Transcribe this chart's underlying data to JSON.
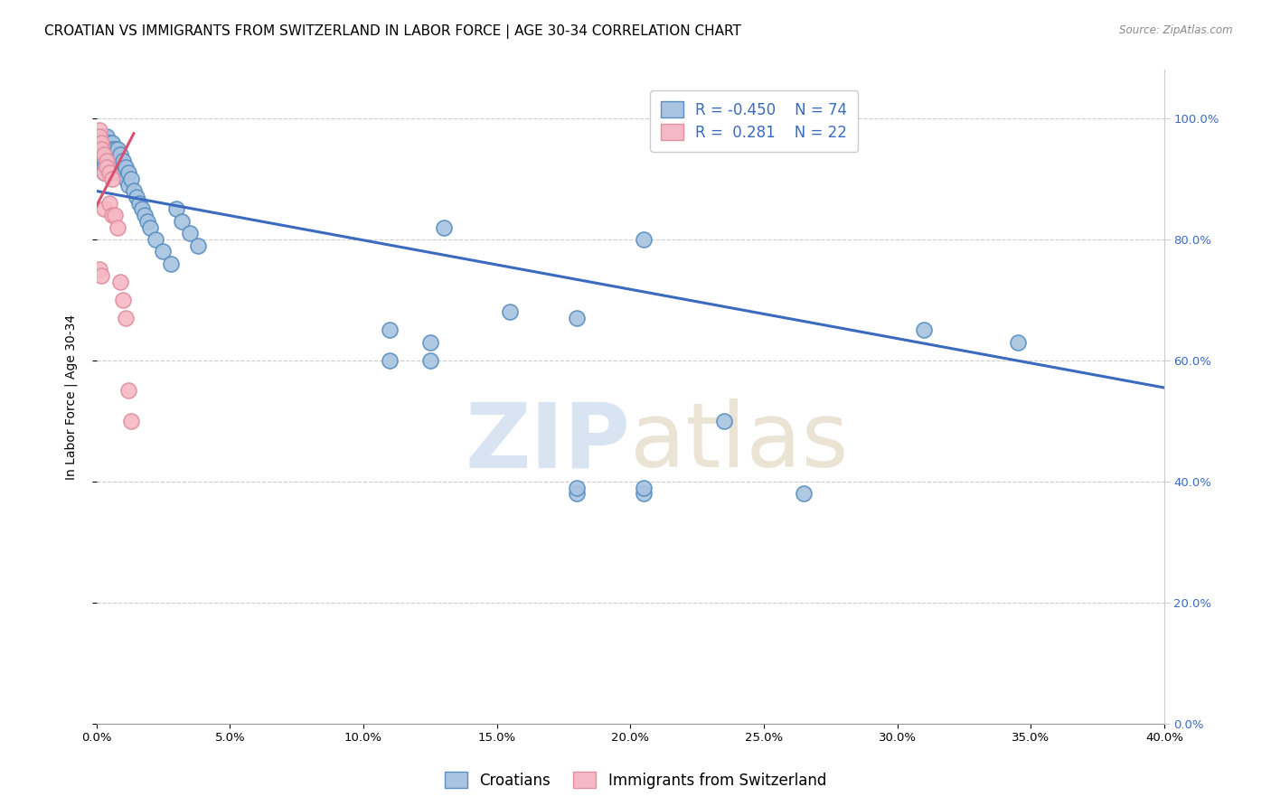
{
  "title": "CROATIAN VS IMMIGRANTS FROM SWITZERLAND IN LABOR FORCE | AGE 30-34 CORRELATION CHART",
  "source": "Source: ZipAtlas.com",
  "ylabel": "In Labor Force | Age 30-34",
  "xlim": [
    0.0,
    0.4
  ],
  "ylim": [
    0.0,
    1.08
  ],
  "xticks": [
    0.0,
    0.05,
    0.1,
    0.15,
    0.2,
    0.25,
    0.3,
    0.35,
    0.4
  ],
  "yticks": [
    0.0,
    0.2,
    0.4,
    0.6,
    0.8,
    1.0
  ],
  "blue_R": -0.45,
  "blue_N": 74,
  "pink_R": 0.281,
  "pink_N": 22,
  "blue_color": "#a8c4e0",
  "blue_edge_color": "#5a8fc0",
  "blue_line_color": "#3a6bbf",
  "pink_color": "#f5b8c4",
  "pink_edge_color": "#e090a0",
  "pink_line_color": "#d95070",
  "watermark_zip": "ZIP",
  "watermark_atlas": "atlas",
  "background_color": "#ffffff",
  "grid_color": "#cccccc",
  "blue_scatter_x": [
    0.001,
    0.001,
    0.001,
    0.002,
    0.002,
    0.002,
    0.002,
    0.002,
    0.003,
    0.003,
    0.003,
    0.003,
    0.003,
    0.003,
    0.003,
    0.004,
    0.004,
    0.004,
    0.004,
    0.004,
    0.005,
    0.005,
    0.005,
    0.005,
    0.005,
    0.006,
    0.006,
    0.006,
    0.006,
    0.007,
    0.007,
    0.007,
    0.008,
    0.008,
    0.008,
    0.009,
    0.009,
    0.01,
    0.01,
    0.011,
    0.011,
    0.012,
    0.012,
    0.013,
    0.014,
    0.015,
    0.016,
    0.017,
    0.018,
    0.019,
    0.02,
    0.022,
    0.025,
    0.028,
    0.03,
    0.032,
    0.035,
    0.038,
    0.11,
    0.125,
    0.13,
    0.155,
    0.18,
    0.205,
    0.235,
    0.265,
    0.31,
    0.345,
    0.18,
    0.205,
    0.11,
    0.125,
    0.18,
    0.205
  ],
  "blue_scatter_y": [
    0.96,
    0.95,
    0.93,
    0.97,
    0.96,
    0.95,
    0.94,
    0.93,
    0.97,
    0.96,
    0.95,
    0.94,
    0.93,
    0.92,
    0.91,
    0.97,
    0.96,
    0.95,
    0.94,
    0.92,
    0.96,
    0.95,
    0.94,
    0.93,
    0.92,
    0.96,
    0.95,
    0.94,
    0.92,
    0.95,
    0.94,
    0.92,
    0.95,
    0.93,
    0.92,
    0.94,
    0.91,
    0.93,
    0.91,
    0.92,
    0.9,
    0.91,
    0.89,
    0.9,
    0.88,
    0.87,
    0.86,
    0.85,
    0.84,
    0.83,
    0.82,
    0.8,
    0.78,
    0.76,
    0.85,
    0.83,
    0.81,
    0.79,
    0.65,
    0.63,
    0.82,
    0.68,
    0.67,
    0.8,
    0.5,
    0.38,
    0.65,
    0.63,
    0.38,
    0.38,
    0.6,
    0.6,
    0.39,
    0.39
  ],
  "pink_scatter_x": [
    0.001,
    0.001,
    0.001,
    0.002,
    0.002,
    0.002,
    0.003,
    0.003,
    0.003,
    0.004,
    0.004,
    0.005,
    0.005,
    0.006,
    0.006,
    0.007,
    0.008,
    0.009,
    0.01,
    0.011,
    0.012,
    0.013
  ],
  "pink_scatter_y": [
    0.98,
    0.97,
    0.75,
    0.96,
    0.95,
    0.74,
    0.94,
    0.91,
    0.85,
    0.93,
    0.92,
    0.91,
    0.86,
    0.9,
    0.84,
    0.84,
    0.82,
    0.73,
    0.7,
    0.67,
    0.55,
    0.5
  ],
  "blue_trend_x0": 0.0,
  "blue_trend_y0": 0.88,
  "blue_trend_x1": 0.4,
  "blue_trend_y1": 0.555,
  "pink_trend_x0": 0.0,
  "pink_trend_y0": 0.855,
  "pink_trend_x1": 0.014,
  "pink_trend_y1": 0.975,
  "legend_label_blue": "Croatians",
  "legend_label_pink": "Immigrants from Switzerland",
  "title_fontsize": 11,
  "axis_label_fontsize": 10,
  "tick_fontsize": 9.5,
  "legend_fontsize": 12
}
